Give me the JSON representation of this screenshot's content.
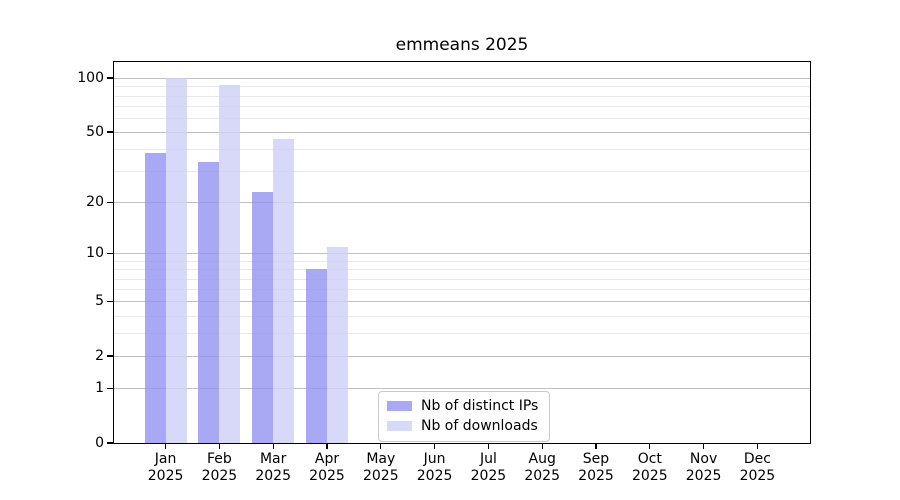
{
  "title": "emmeans 2025",
  "chart_data": {
    "type": "bar",
    "title": "emmeans 2025",
    "x_categories": [
      "Jan",
      "Feb",
      "Mar",
      "Apr",
      "May",
      "Jun",
      "Jul",
      "Aug",
      "Sep",
      "Oct",
      "Nov",
      "Dec"
    ],
    "x_year": "2025",
    "series": [
      {
        "name": "Nb of distinct IPs",
        "color": "#a8a8f3",
        "values": [
          38,
          34,
          23,
          8,
          0,
          0,
          0,
          0,
          0,
          0,
          0,
          0
        ]
      },
      {
        "name": "Nb of downloads",
        "color": "#d8d8f8",
        "values": [
          100,
          91,
          46,
          11,
          0,
          0,
          0,
          0,
          0,
          0,
          0,
          0
        ]
      }
    ],
    "y_scale": "log1p",
    "y_ticks_major": [
      0,
      1,
      2,
      5,
      10,
      20,
      50,
      100
    ],
    "y_ticks_minor": [
      3,
      4,
      6,
      7,
      8,
      9,
      30,
      40,
      60,
      70,
      80,
      90
    ],
    "y_axis_top_value": 123,
    "grid": true,
    "legend_position": "inside-bottom-center",
    "colors": {
      "grid_major": "#c0c0c0",
      "grid_minor": "#e9e9e9",
      "spine": "#000000",
      "background": "#ffffff"
    }
  }
}
